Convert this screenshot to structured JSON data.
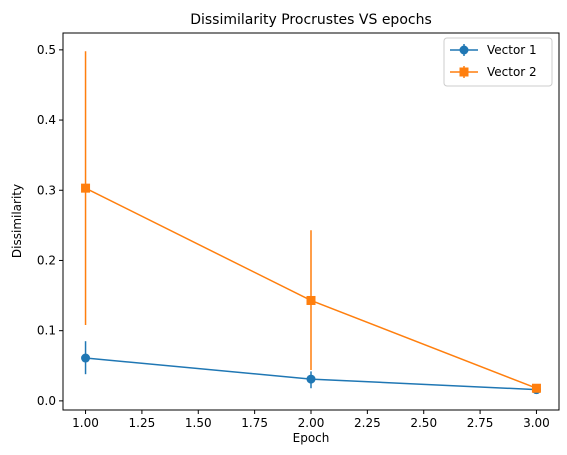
{
  "chart_data": {
    "type": "line",
    "title": "Dissimilarity Procrustes VS epochs",
    "xlabel": "Epoch",
    "ylabel": "Dissimilarity",
    "xlim": [
      0.9,
      3.1
    ],
    "ylim": [
      -0.013,
      0.524
    ],
    "xticks": [
      1.0,
      1.25,
      1.5,
      1.75,
      2.0,
      2.25,
      2.5,
      2.75,
      3.0
    ],
    "xtick_labels": [
      "1.00",
      "1.25",
      "1.50",
      "1.75",
      "2.00",
      "2.25",
      "2.50",
      "2.75",
      "3.00"
    ],
    "yticks": [
      0.0,
      0.1,
      0.2,
      0.3,
      0.4,
      0.5
    ],
    "ytick_labels": [
      "0.0",
      "0.1",
      "0.2",
      "0.3",
      "0.4",
      "0.5"
    ],
    "grid": false,
    "legend_position": "top-right",
    "series": [
      {
        "name": "Vector 1",
        "color": "#1f77b4",
        "marker": "circle",
        "x": [
          1,
          2,
          3
        ],
        "y": [
          0.061,
          0.031,
          0.016
        ],
        "yerr_low": [
          0.038,
          0.018,
          0.013
        ],
        "yerr_high": [
          0.085,
          0.042,
          0.019
        ]
      },
      {
        "name": "Vector 2",
        "color": "#ff7f0e",
        "marker": "square",
        "x": [
          1,
          2,
          3
        ],
        "y": [
          0.303,
          0.143,
          0.018
        ],
        "yerr_low": [
          0.108,
          0.044,
          0.015
        ],
        "yerr_high": [
          0.498,
          0.243,
          0.021
        ]
      }
    ]
  }
}
